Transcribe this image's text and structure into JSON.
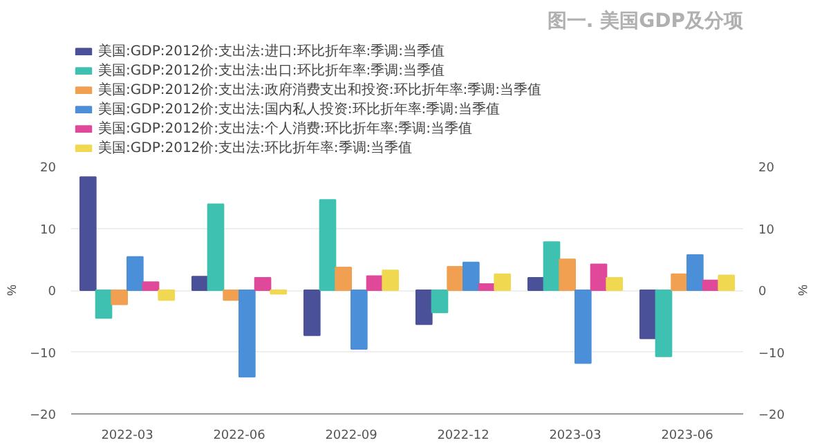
{
  "chart_data": {
    "type": "bar",
    "title": "图一. 美国GDP及分项",
    "ylabel": "%",
    "y2label": "%",
    "categories": [
      "2022-03",
      "2022-06",
      "2022-09",
      "2022-12",
      "2023-03",
      "2023-06"
    ],
    "series": [
      {
        "name": "美国:GDP:2012价:支出法:进口:环比折年率:季调:当季值",
        "color": "#4a5199",
        "values": [
          18.3,
          2.2,
          -7.3,
          -5.5,
          2.0,
          -7.8
        ]
      },
      {
        "name": "美国:GDP:2012价:支出法:出口:环比折年率:季调:当季值",
        "color": "#3ec1b0",
        "values": [
          -4.5,
          13.9,
          14.6,
          -3.6,
          7.8,
          -10.7
        ]
      },
      {
        "name": "美国:GDP:2012价:支出法:政府消费支出和投资:环比折年率:季调:当季值",
        "color": "#f0a050",
        "values": [
          -2.3,
          -1.6,
          3.7,
          3.8,
          5.0,
          2.6
        ]
      },
      {
        "name": "美国:GDP:2012价:支出法:国内私人投资:环比折年率:季调:当季值",
        "color": "#4a8fd8",
        "values": [
          5.4,
          -14.0,
          -9.5,
          4.5,
          -11.8,
          5.7
        ]
      },
      {
        "name": "美国:GDP:2012价:支出法:个人消费:环比折年率:季调:当季值",
        "color": "#e0489a",
        "values": [
          1.3,
          2.0,
          2.3,
          1.0,
          4.2,
          1.6
        ]
      },
      {
        "name": "美国:GDP:2012价:支出法:环比折年率:季调:当季值",
        "color": "#f0d850",
        "values": [
          -1.6,
          -0.6,
          3.2,
          2.6,
          2.0,
          2.4
        ]
      }
    ],
    "ylim": [
      -20,
      20
    ],
    "yticks": [
      -20,
      -10,
      0,
      10,
      20
    ],
    "y2lim": [
      -20,
      20
    ],
    "y2ticks": [
      -20,
      -10,
      0,
      10,
      20
    ],
    "grid": "y",
    "legend": "top"
  }
}
